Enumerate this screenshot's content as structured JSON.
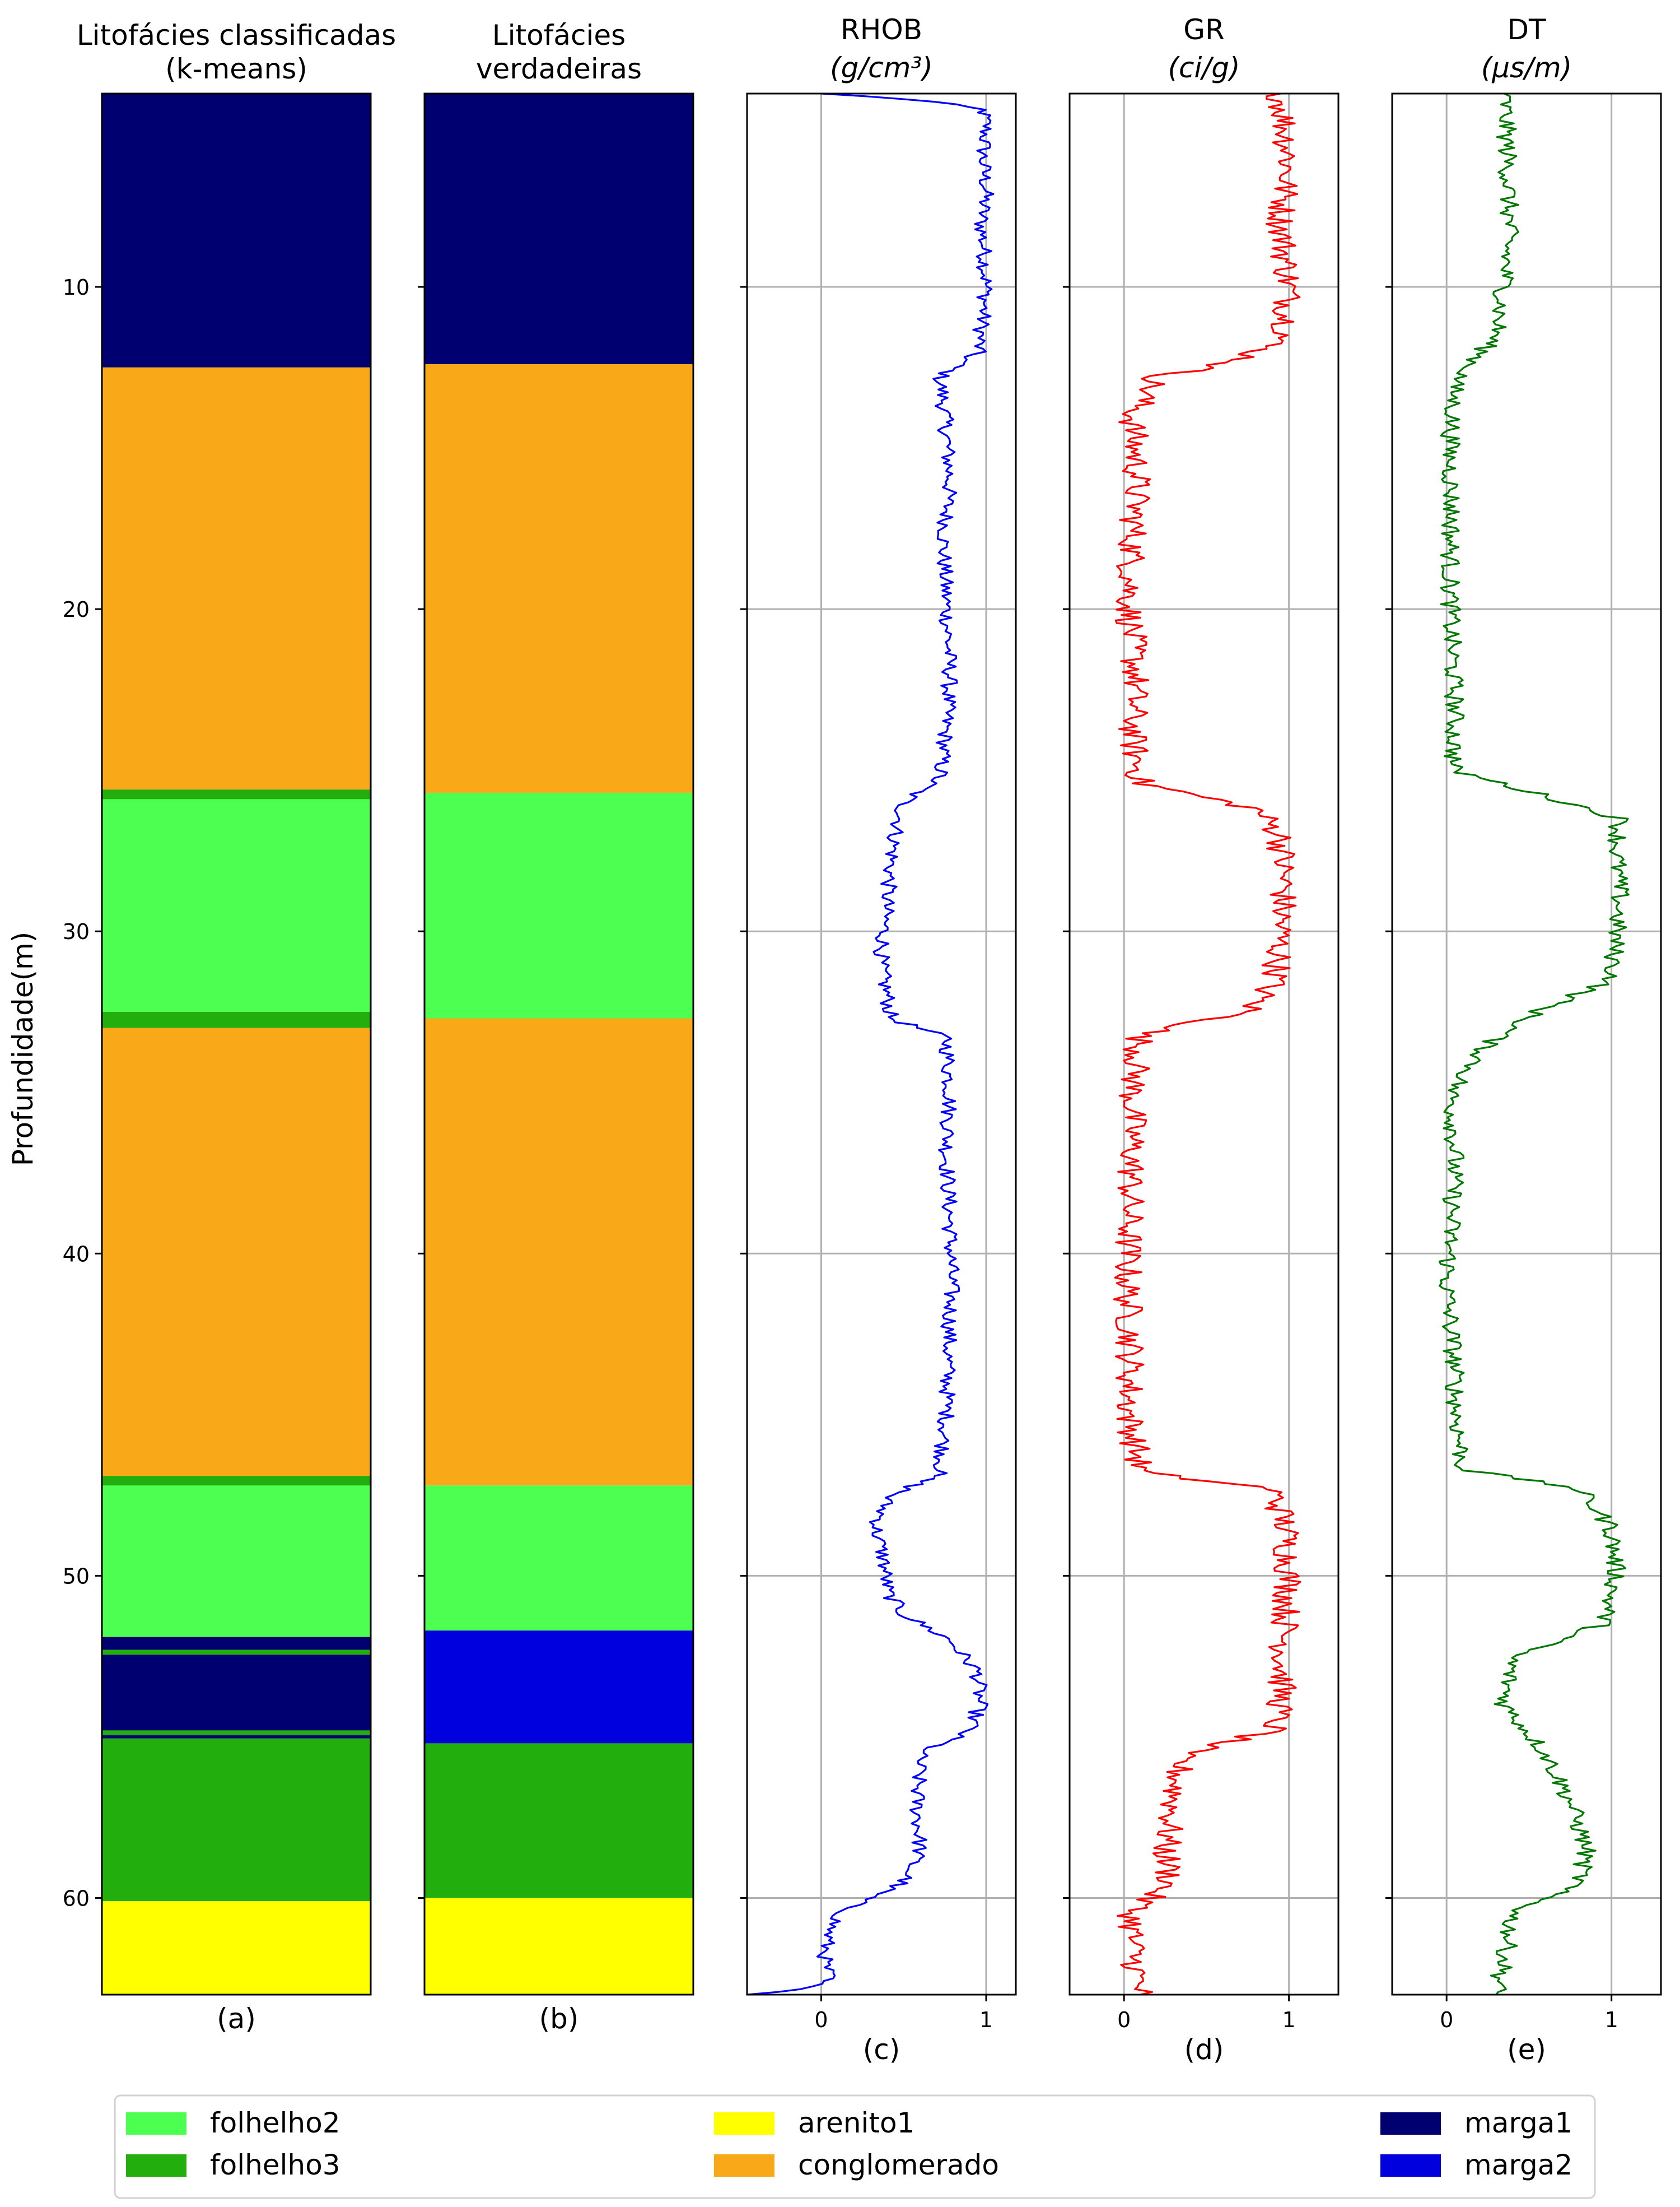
{
  "figure": {
    "ylabel": "Profundidade(m)",
    "depth_range": [
      4,
      63
    ],
    "depth_ticks": [
      10,
      20,
      30,
      40,
      50,
      60
    ]
  },
  "colors": {
    "folhelho2": "#4cff50",
    "folhelho3": "#22ae0c",
    "arenito1": "#ffff00",
    "conglomerado": "#f9a818",
    "marga1": "#000070",
    "marga2": "#0000de",
    "rhob_line": "#0000ff",
    "gr_line": "#ff0000",
    "dt_line": "#007800",
    "grid": "#b0b0b0"
  },
  "chart_data": [
    {
      "type": "table",
      "panel": "a",
      "title_line1": "Litofácies classificadas",
      "title_line2": "(k-means)",
      "sublabel": "(a)",
      "ylabel": "Profundidade(m)",
      "ylim": [
        63,
        4
      ],
      "intervals": [
        {
          "top": 4.0,
          "base": 12.5,
          "facies": "marga1"
        },
        {
          "top": 12.5,
          "base": 25.6,
          "facies": "conglomerado"
        },
        {
          "top": 25.6,
          "base": 25.9,
          "facies": "folhelho3"
        },
        {
          "top": 25.9,
          "base": 32.5,
          "facies": "folhelho2"
        },
        {
          "top": 32.5,
          "base": 33.0,
          "facies": "folhelho3"
        },
        {
          "top": 33.0,
          "base": 46.9,
          "facies": "conglomerado"
        },
        {
          "top": 46.9,
          "base": 47.2,
          "facies": "folhelho3"
        },
        {
          "top": 47.2,
          "base": 51.9,
          "facies": "folhelho2"
        },
        {
          "top": 51.9,
          "base": 52.3,
          "facies": "marga1"
        },
        {
          "top": 52.3,
          "base": 52.45,
          "facies": "folhelho3"
        },
        {
          "top": 52.45,
          "base": 54.8,
          "facies": "marga1"
        },
        {
          "top": 54.8,
          "base": 54.95,
          "facies": "folhelho3"
        },
        {
          "top": 54.95,
          "base": 55.05,
          "facies": "marga1"
        },
        {
          "top": 55.05,
          "base": 60.1,
          "facies": "folhelho3"
        },
        {
          "top": 60.1,
          "base": 63.0,
          "facies": "arenito1"
        }
      ]
    },
    {
      "type": "table",
      "panel": "b",
      "title_line1": "Litofácies",
      "title_line2": "verdadeiras",
      "sublabel": "(b)",
      "ylim": [
        63,
        4
      ],
      "intervals": [
        {
          "top": 4.0,
          "base": 12.4,
          "facies": "marga1"
        },
        {
          "top": 12.4,
          "base": 25.7,
          "facies": "conglomerado"
        },
        {
          "top": 25.7,
          "base": 32.7,
          "facies": "folhelho2"
        },
        {
          "top": 32.7,
          "base": 47.2,
          "facies": "conglomerado"
        },
        {
          "top": 47.2,
          "base": 51.7,
          "facies": "folhelho2"
        },
        {
          "top": 51.7,
          "base": 55.2,
          "facies": "marga2"
        },
        {
          "top": 55.2,
          "base": 60.0,
          "facies": "folhelho3"
        },
        {
          "top": 60.0,
          "base": 63.0,
          "facies": "arenito1"
        }
      ]
    },
    {
      "type": "line",
      "panel": "c",
      "title": "RHOB",
      "unit": "(g/cm³)",
      "sublabel": "(c)",
      "xlim": [
        -0.45,
        1.18
      ],
      "xticks": [
        0,
        1
      ],
      "ylim": [
        63,
        4
      ],
      "grid": true,
      "series": [
        {
          "depth": [
            4.0,
            4.2,
            4.5,
            5,
            6,
            7,
            8,
            9,
            10,
            11,
            12,
            12.8,
            14,
            16,
            18,
            20,
            22,
            24,
            25.2,
            26,
            27,
            28,
            29,
            30,
            31,
            32,
            32.7,
            33.3,
            35,
            37,
            39,
            41,
            43,
            45,
            46.8,
            47.6,
            48.5,
            49.5,
            50.5,
            51.2,
            52,
            53,
            54,
            54.8,
            55.5,
            57,
            58.5,
            59.5,
            60.2,
            60.6,
            61,
            61.5,
            62,
            62.5,
            62.8,
            63.0
          ],
          "values": [
            0.0,
            0.6,
            0.98,
            1.0,
            0.98,
            1.0,
            0.97,
            0.99,
            1.0,
            0.98,
            0.95,
            0.72,
            0.75,
            0.78,
            0.74,
            0.76,
            0.78,
            0.75,
            0.72,
            0.5,
            0.45,
            0.42,
            0.4,
            0.38,
            0.36,
            0.4,
            0.42,
            0.76,
            0.78,
            0.76,
            0.78,
            0.79,
            0.77,
            0.76,
            0.72,
            0.4,
            0.33,
            0.38,
            0.4,
            0.5,
            0.78,
            0.95,
            0.96,
            0.9,
            0.6,
            0.58,
            0.6,
            0.5,
            0.2,
            0.1,
            0.05,
            0.03,
            0.02,
            0.05,
            -0.1,
            -0.45
          ],
          "noise": 0.05
        }
      ]
    },
    {
      "type": "line",
      "panel": "d",
      "title": "GR",
      "unit": "(ci/g)",
      "sublabel": "(d)",
      "xlim": [
        -0.33,
        1.3
      ],
      "xticks": [
        0,
        1
      ],
      "ylim": [
        63,
        4
      ],
      "grid": true,
      "series": [
        {
          "depth": [
            4.0,
            6,
            8,
            10,
            11.5,
            12.3,
            12.8,
            14,
            16,
            18,
            20,
            22,
            24,
            25.4,
            26.2,
            27,
            28.5,
            30,
            31.5,
            32.5,
            33.2,
            35,
            37,
            39,
            41,
            43,
            45,
            46.8,
            47.3,
            48.5,
            50,
            52,
            54,
            54.8,
            55.5,
            57,
            58.5,
            59.5,
            60.4,
            61.5,
            63.0
          ],
          "values": [
            0.95,
            1.0,
            0.95,
            1.0,
            0.98,
            0.7,
            0.2,
            0.05,
            0.08,
            0.05,
            0.03,
            0.07,
            0.05,
            0.1,
            0.8,
            0.95,
            0.97,
            0.95,
            0.92,
            0.75,
            0.1,
            0.05,
            0.05,
            0.03,
            0.02,
            0.04,
            0.03,
            0.1,
            0.9,
            0.98,
            1.0,
            0.97,
            0.95,
            0.9,
            0.35,
            0.3,
            0.25,
            0.28,
            0.05,
            0.05,
            0.1
          ],
          "noise": 0.09
        }
      ]
    },
    {
      "type": "line",
      "panel": "e",
      "title": "DT",
      "unit": "(μs/m)",
      "sublabel": "(e)",
      "xlim": [
        -0.33,
        1.3
      ],
      "xticks": [
        0,
        1
      ],
      "ylim": [
        63,
        4
      ],
      "grid": true,
      "series": [
        {
          "depth": [
            4.0,
            6,
            8,
            10,
            11.5,
            13,
            15,
            17,
            19,
            21,
            23,
            25,
            25.8,
            26.5,
            27.5,
            29,
            30.5,
            31.5,
            32.5,
            33.5,
            35,
            37,
            39,
            41,
            43,
            45,
            46.7,
            47.3,
            48.5,
            50,
            51.5,
            52.5,
            54,
            55.5,
            57,
            58.5,
            59.5,
            60.5,
            62,
            63.0
          ],
          "values": [
            0.35,
            0.37,
            0.38,
            0.35,
            0.3,
            0.05,
            0.02,
            0.03,
            0.02,
            0.03,
            0.05,
            0.04,
            0.6,
            1.05,
            1.03,
            1.05,
            1.02,
            1.0,
            0.55,
            0.25,
            0.03,
            0.05,
            0.03,
            0.0,
            0.04,
            0.06,
            0.1,
            0.8,
            1.0,
            1.03,
            0.95,
            0.4,
            0.35,
            0.6,
            0.75,
            0.85,
            0.8,
            0.4,
            0.35,
            0.3
          ],
          "noise": 0.06
        }
      ]
    }
  ],
  "legend": {
    "placement": "bottom",
    "items": [
      {
        "label": "folhelho2",
        "facies": "folhelho2"
      },
      {
        "label": "folhelho3",
        "facies": "folhelho3"
      },
      {
        "label": "arenito1",
        "facies": "arenito1"
      },
      {
        "label": "conglomerado",
        "facies": "conglomerado"
      },
      {
        "label": "marga1",
        "facies": "marga1"
      },
      {
        "label": "marga2",
        "facies": "marga2"
      }
    ]
  }
}
